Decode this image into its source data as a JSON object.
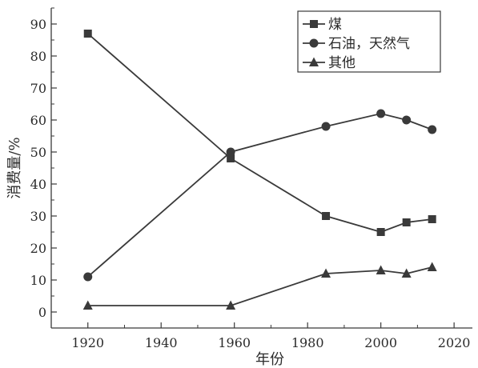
{
  "chart_data": {
    "type": "line",
    "title": "",
    "xlabel": "年份",
    "ylabel": "消费量/%",
    "xlim": [
      1910,
      2025
    ],
    "ylim": [
      -5,
      95
    ],
    "xticks": [
      1920,
      1940,
      1960,
      1980,
      2000,
      2020
    ],
    "yticks": [
      0,
      10,
      20,
      30,
      40,
      50,
      60,
      70,
      80,
      90
    ],
    "grid": false,
    "legend_position": "top-right",
    "color": "#3a3a3a",
    "series": [
      {
        "name": "煤",
        "marker": "square",
        "points": [
          [
            1920,
            87
          ],
          [
            1959,
            48
          ],
          [
            1985,
            30
          ],
          [
            2000,
            25
          ],
          [
            2007,
            28
          ],
          [
            2014,
            29
          ]
        ]
      },
      {
        "name": "石油，天然气",
        "marker": "circle",
        "points": [
          [
            1920,
            11
          ],
          [
            1959,
            50
          ],
          [
            1985,
            58
          ],
          [
            2000,
            62
          ],
          [
            2007,
            60
          ],
          [
            2014,
            57
          ]
        ]
      },
      {
        "name": "其他",
        "marker": "triangle",
        "points": [
          [
            1920,
            2
          ],
          [
            1959,
            2
          ],
          [
            1985,
            12
          ],
          [
            2000,
            13
          ],
          [
            2007,
            12
          ],
          [
            2014,
            14
          ]
        ]
      }
    ]
  }
}
